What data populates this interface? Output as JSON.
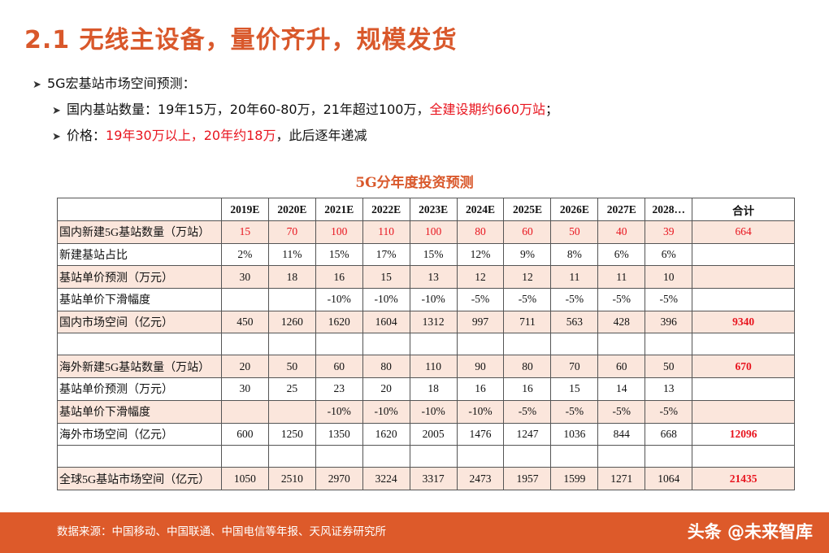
{
  "title": "2.1 无线主设备，量价齐升，规模发货",
  "bullets": {
    "b1": "5G宏基站市场空间预测：",
    "b2_prefix": "国内基站数量：19年15万，20年60-80万，21年超过100万，",
    "b2_red": "全建设期约660万站",
    "b2_suffix": "；",
    "b3_prefix": "价格：",
    "b3_red": "19年30万以上，20年约18万",
    "b3_suffix": "，此后逐年递减"
  },
  "table": {
    "title": "5G分年度投资预测",
    "headers": [
      "",
      "2019E",
      "2020E",
      "2021E",
      "2022E",
      "2023E",
      "2024E",
      "2025E",
      "2026E",
      "2027E",
      "2028…",
      "合计"
    ],
    "rows": [
      {
        "label": "国内新建5G基站数量（万站）",
        "values": [
          "15",
          "70",
          "100",
          "110",
          "100",
          "80",
          "60",
          "50",
          "40",
          "39"
        ],
        "total": "664"
      },
      {
        "label": "新建基站占比",
        "values": [
          "2%",
          "11%",
          "15%",
          "17%",
          "15%",
          "12%",
          "9%",
          "8%",
          "6%",
          "6%"
        ],
        "total": ""
      },
      {
        "label": "基站单价预测（万元）",
        "values": [
          "30",
          "18",
          "16",
          "15",
          "13",
          "12",
          "12",
          "11",
          "11",
          "10"
        ],
        "total": ""
      },
      {
        "label": "基站单价下滑幅度",
        "values": [
          "",
          "",
          "-10%",
          "-10%",
          "-10%",
          "-5%",
          "-5%",
          "-5%",
          "-5%",
          "-5%"
        ],
        "total": ""
      },
      {
        "label": "国内市场空间（亿元）",
        "values": [
          "450",
          "1260",
          "1620",
          "1604",
          "1312",
          "997",
          "711",
          "563",
          "428",
          "396"
        ],
        "total": "9340"
      },
      {
        "label": "",
        "values": [
          "",
          "",
          "",
          "",
          "",
          "",
          "",
          "",
          "",
          ""
        ],
        "total": ""
      },
      {
        "label": "海外新建5G基站数量（万站）",
        "values": [
          "20",
          "50",
          "60",
          "80",
          "110",
          "90",
          "80",
          "70",
          "60",
          "50"
        ],
        "total": "670"
      },
      {
        "label": "基站单价预测（万元）",
        "values": [
          "30",
          "25",
          "23",
          "20",
          "18",
          "16",
          "16",
          "15",
          "14",
          "13"
        ],
        "total": ""
      },
      {
        "label": "基站单价下滑幅度",
        "values": [
          "",
          "",
          "-10%",
          "-10%",
          "-10%",
          "-10%",
          "-5%",
          "-5%",
          "-5%",
          "-5%"
        ],
        "total": ""
      },
      {
        "label": "海外市场空间（亿元）",
        "values": [
          "600",
          "1250",
          "1350",
          "1620",
          "2005",
          "1476",
          "1247",
          "1036",
          "844",
          "668"
        ],
        "total": "12096"
      },
      {
        "label": "",
        "values": [
          "",
          "",
          "",
          "",
          "",
          "",
          "",
          "",
          "",
          ""
        ],
        "total": ""
      },
      {
        "label": "全球5G基站市场空间（亿元）",
        "values": [
          "1050",
          "2510",
          "2970",
          "3224",
          "3317",
          "2473",
          "1957",
          "1599",
          "1271",
          "1064"
        ],
        "total": "21435"
      }
    ]
  },
  "footer": {
    "source": "数据来源：中国移动、中国联通、中国电信等年报、天风证券研究所",
    "watermark": "头条 @未来智库"
  }
}
